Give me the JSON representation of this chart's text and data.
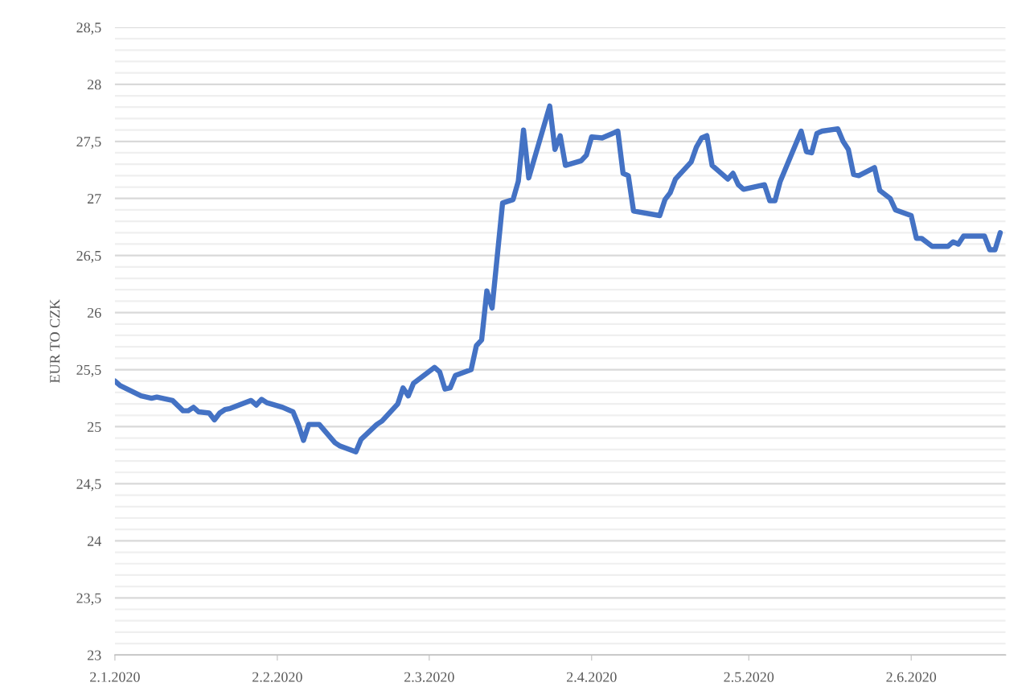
{
  "chart_data": {
    "type": "line",
    "ylabel": "EUR TO CZK",
    "x": [
      "2020-01-02",
      "2020-01-03",
      "2020-01-07",
      "2020-01-09",
      "2020-01-10",
      "2020-01-13",
      "2020-01-15",
      "2020-01-16",
      "2020-01-17",
      "2020-01-18",
      "2020-01-20",
      "2020-01-21",
      "2020-01-22",
      "2020-01-23",
      "2020-01-24",
      "2020-01-28",
      "2020-01-29",
      "2020-01-30",
      "2020-01-31",
      "2020-02-03",
      "2020-02-05",
      "2020-02-06",
      "2020-02-07",
      "2020-02-08",
      "2020-02-10",
      "2020-02-13",
      "2020-02-14",
      "2020-02-17",
      "2020-02-18",
      "2020-02-21",
      "2020-02-22",
      "2020-02-25",
      "2020-02-26",
      "2020-02-27",
      "2020-02-28",
      "2020-03-03",
      "2020-03-04",
      "2020-03-05",
      "2020-03-06",
      "2020-03-07",
      "2020-03-10",
      "2020-03-11",
      "2020-03-12",
      "2020-03-13",
      "2020-03-14",
      "2020-03-16",
      "2020-03-18",
      "2020-03-19",
      "2020-03-20",
      "2020-03-21",
      "2020-03-25",
      "2020-03-26",
      "2020-03-27",
      "2020-03-28",
      "2020-03-31",
      "2020-04-01",
      "2020-04-02",
      "2020-04-04",
      "2020-04-07",
      "2020-04-08",
      "2020-04-09",
      "2020-04-10",
      "2020-04-15",
      "2020-04-16",
      "2020-04-17",
      "2020-04-18",
      "2020-04-21",
      "2020-04-22",
      "2020-04-23",
      "2020-04-24",
      "2020-04-25",
      "2020-04-28",
      "2020-04-29",
      "2020-04-30",
      "2020-05-01",
      "2020-05-05",
      "2020-05-06",
      "2020-05-07",
      "2020-05-08",
      "2020-05-12",
      "2020-05-13",
      "2020-05-14",
      "2020-05-15",
      "2020-05-16",
      "2020-05-19",
      "2020-05-20",
      "2020-05-21",
      "2020-05-22",
      "2020-05-23",
      "2020-05-26",
      "2020-05-27",
      "2020-05-29",
      "2020-05-30",
      "2020-06-02",
      "2020-06-03",
      "2020-06-04",
      "2020-06-06",
      "2020-06-09",
      "2020-06-10",
      "2020-06-11",
      "2020-06-12",
      "2020-06-16",
      "2020-06-17",
      "2020-06-18",
      "2020-06-19"
    ],
    "series": [
      {
        "color": "#4472c4",
        "values": [
          25.4,
          25.36,
          25.27,
          25.25,
          25.26,
          25.23,
          25.14,
          25.14,
          25.17,
          25.13,
          25.12,
          25.06,
          25.12,
          25.15,
          25.16,
          25.23,
          25.19,
          25.24,
          25.21,
          25.17,
          25.13,
          25.02,
          24.88,
          25.02,
          25.02,
          24.86,
          24.83,
          24.78,
          24.89,
          25.02,
          25.05,
          25.2,
          25.34,
          25.27,
          25.38,
          25.52,
          25.48,
          25.33,
          25.34,
          25.45,
          25.5,
          25.71,
          25.76,
          26.19,
          26.04,
          26.96,
          26.99,
          27.15,
          27.6,
          27.18,
          27.81,
          27.43,
          27.55,
          27.29,
          27.33,
          27.38,
          27.54,
          27.53,
          27.59,
          27.22,
          27.2,
          26.89,
          26.85,
          26.99,
          27.05,
          27.17,
          27.32,
          27.45,
          27.53,
          27.55,
          27.29,
          27.17,
          27.22,
          27.12,
          27.08,
          27.12,
          26.98,
          26.98,
          27.15,
          27.59,
          27.41,
          27.4,
          27.57,
          27.59,
          27.61,
          27.5,
          27.43,
          27.21,
          27.2,
          27.27,
          27.07,
          27.0,
          26.9,
          26.85,
          26.65,
          26.65,
          26.58,
          26.58,
          26.62,
          26.6,
          26.67,
          26.67,
          26.55,
          26.55,
          26.7
        ]
      }
    ],
    "xlim": [
      "2020-01-02",
      "2020-06-20"
    ],
    "xticks": [
      {
        "value": "2020-01-02",
        "label": "2.1.2020"
      },
      {
        "value": "2020-02-02",
        "label": "2.2.2020"
      },
      {
        "value": "2020-03-02",
        "label": "2.3.2020"
      },
      {
        "value": "2020-04-02",
        "label": "2.4.2020"
      },
      {
        "value": "2020-05-02",
        "label": "2.5.2020"
      },
      {
        "value": "2020-06-02",
        "label": "2.6.2020"
      }
    ],
    "ylim": [
      23,
      28.5
    ],
    "yticks": [
      23,
      {
        "value": 23.5,
        "label": "23,5"
      },
      24,
      {
        "value": 24.5,
        "label": "24,5"
      },
      25,
      {
        "value": 25.5,
        "label": "25,5"
      },
      26,
      {
        "value": 26.5,
        "label": "26,5"
      },
      27,
      {
        "value": 27.5,
        "label": "27,5"
      },
      28,
      {
        "value": 28.5,
        "label": "28,5"
      }
    ],
    "grid": "y",
    "line_style": "solid",
    "marker": "none"
  }
}
